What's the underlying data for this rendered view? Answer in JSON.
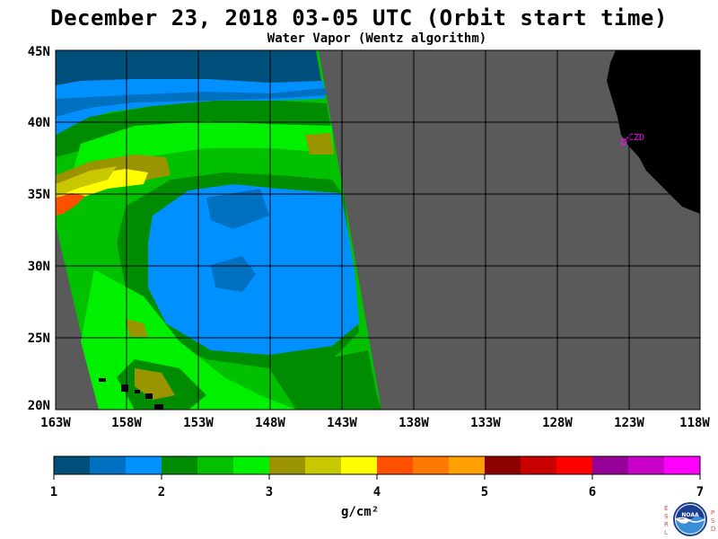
{
  "title": "December 23, 2018  03-05 UTC  (Orbit start time)",
  "subtitle": "Water Vapor (Wentz algorithm)",
  "lat_labels": [
    "45N",
    "40N",
    "35N",
    "30N",
    "25N",
    "20N"
  ],
  "lon_labels": [
    "163W",
    "158W",
    "153W",
    "148W",
    "143W",
    "138W",
    "133W",
    "128W",
    "123W",
    "118W"
  ],
  "station_label": "CZD",
  "colorbar": {
    "ticks": [
      "1",
      "2",
      "3",
      "4",
      "5",
      "6",
      "7"
    ],
    "unit": "g/cm²",
    "colors": [
      "#004f7a",
      "#0070c0",
      "#0090ff",
      "#008c00",
      "#00c000",
      "#00f000",
      "#9a9400",
      "#c8c800",
      "#ffff00",
      "#ff5000",
      "#ff7800",
      "#ffa000",
      "#8c0000",
      "#c80000",
      "#ff0000",
      "#960096",
      "#c800c8",
      "#ff00ff"
    ]
  },
  "logo": {
    "left_letters": "ESRL",
    "right_letters": "PSD",
    "name": "NOAA"
  },
  "colors": {
    "land": "#000000",
    "ocean_nodata": "#5a5a5a",
    "grid": "#000000",
    "station": "#ff00ff"
  }
}
